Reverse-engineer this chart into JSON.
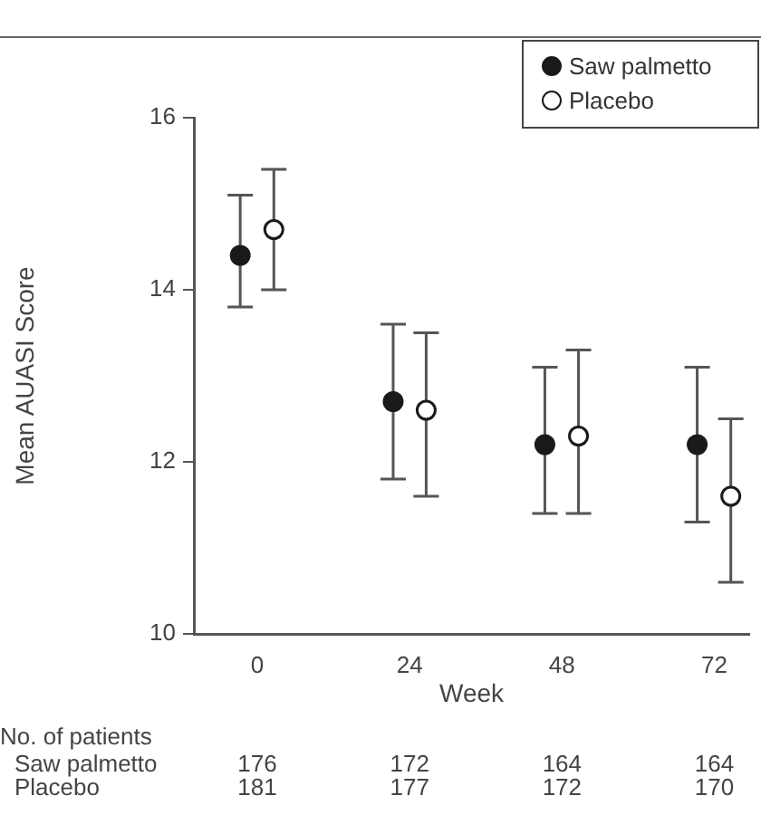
{
  "chart_data": {
    "type": "scatter",
    "xlabel": "Week",
    "ylabel": "Mean AUASI Score",
    "xlim": [
      -10,
      77.5
    ],
    "xticks": [
      0,
      24,
      48,
      72
    ],
    "ylim": [
      10,
      16
    ],
    "yticks": [
      10,
      12,
      14,
      16
    ],
    "grid": false,
    "legend": "top right",
    "marker": "circle",
    "series": [
      {
        "name": "Saw palmetto",
        "color": "#1a1a1a",
        "x": [
          -2.7,
          21.4,
          45.3,
          69.3
        ],
        "values": [
          14.4,
          12.7,
          12.2,
          12.2
        ],
        "errors": [
          [
            13.8,
            15.1
          ],
          [
            11.8,
            13.6
          ],
          [
            11.4,
            13.1
          ],
          [
            11.3,
            13.1
          ]
        ]
      },
      {
        "name": "Placebo",
        "color": "#ffffff",
        "x": [
          2.6,
          26.6,
          50.6,
          74.6
        ],
        "values": [
          14.7,
          12.6,
          12.3,
          11.6
        ],
        "errors": [
          [
            14.0,
            15.4
          ],
          [
            11.6,
            13.5
          ],
          [
            11.4,
            13.3
          ],
          [
            10.6,
            12.5
          ]
        ]
      }
    ],
    "annotations": [
      "No. of patients",
      "Saw palmetto",
      "176",
      "172",
      "164",
      "164",
      "Placebo",
      "181",
      "177",
      "172",
      "170"
    ]
  }
}
